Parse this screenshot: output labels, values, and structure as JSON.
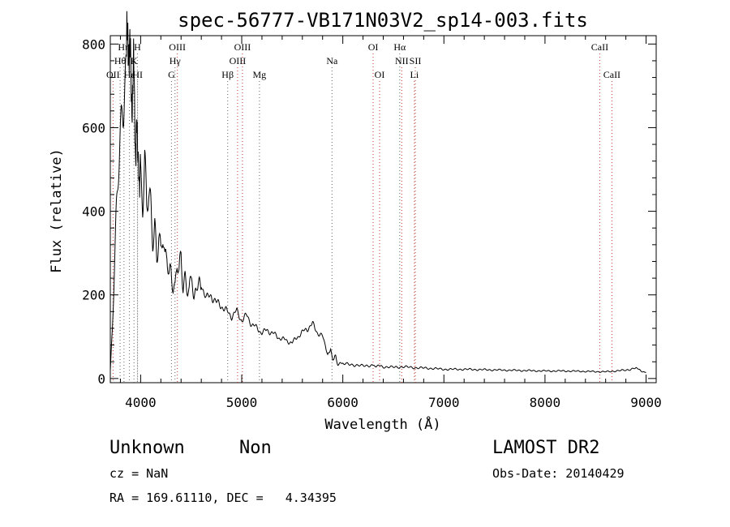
{
  "chart_data": {
    "type": "line",
    "title": "spec-56777-VB171N03V2_sp14-003.fits",
    "xlabel": "Wavelength (Å)",
    "ylabel": "Flux (relative)",
    "xlim": [
      3700,
      9100
    ],
    "ylim": [
      -10,
      820
    ],
    "x_ticks": [
      4000,
      5000,
      6000,
      7000,
      8000,
      9000
    ],
    "y_ticks": [
      0,
      200,
      400,
      600,
      800
    ],
    "grid": false,
    "series": [
      {
        "x": [
          3700,
          3720,
          3740,
          3760,
          3780,
          3800,
          3820,
          3840,
          3860,
          3870,
          3880,
          3890,
          3900,
          3910,
          3920,
          3930,
          3940,
          3950,
          3960,
          3970,
          3980,
          3990,
          4000,
          4020,
          4040,
          4060,
          4080,
          4100,
          4120,
          4140,
          4160,
          4180,
          4200,
          4220,
          4240,
          4260,
          4280,
          4300,
          4320,
          4340,
          4360,
          4380,
          4400,
          4420,
          4440,
          4460,
          4480,
          4500,
          4550,
          4600,
          4650,
          4700,
          4750,
          4800,
          4850,
          4900,
          4950,
          5000,
          5050,
          5100,
          5150,
          5200,
          5250,
          5300,
          5350,
          5400,
          5450,
          5500,
          5550,
          5600,
          5650,
          5700,
          5750,
          5800,
          5850,
          5880,
          5900,
          5930,
          5950,
          6000,
          6100,
          6200,
          6300,
          6350,
          6400,
          6500,
          6600,
          6700,
          6800,
          6900,
          7000,
          7200,
          7400,
          7600,
          7800,
          8000,
          8200,
          8400,
          8600,
          8800,
          8900,
          8950,
          9000
        ],
        "y": [
          20,
          120,
          260,
          380,
          480,
          570,
          660,
          720,
          760,
          800,
          840,
          790,
          730,
          680,
          700,
          720,
          650,
          560,
          600,
          510,
          540,
          470,
          500,
          430,
          520,
          390,
          430,
          400,
          340,
          380,
          300,
          350,
          290,
          330,
          270,
          300,
          260,
          270,
          230,
          210,
          270,
          240,
          290,
          220,
          250,
          230,
          210,
          240,
          200,
          230,
          190,
          200,
          180,
          175,
          160,
          150,
          160,
          140,
          150,
          130,
          120,
          110,
          115,
          110,
          100,
          95,
          90,
          85,
          100,
          110,
          120,
          130,
          110,
          100,
          60,
          70,
          40,
          55,
          35,
          35,
          33,
          30,
          32,
          30,
          28,
          27,
          28,
          26,
          25,
          24,
          22,
          22,
          21,
          20,
          19,
          18,
          18,
          17,
          16,
          20,
          25,
          18,
          15
        ]
      }
    ],
    "line_ids": [
      {
        "label": "Hη",
        "x": 3835,
        "row": 0
      },
      {
        "label": "H",
        "x": 3968,
        "row": 0
      },
      {
        "label": "Hθ",
        "x": 3797,
        "row": 1
      },
      {
        "label": "K",
        "x": 3934,
        "row": 1
      },
      {
        "label": "OII",
        "x": 3727,
        "row": 2
      },
      {
        "label": "Hε",
        "x": 3889,
        "row": 2
      },
      {
        "label": "HI",
        "x": 3970,
        "row": 2
      },
      {
        "label": "OIII",
        "x": 4363,
        "row": 0
      },
      {
        "label": "Hγ",
        "x": 4340,
        "row": 1
      },
      {
        "label": "G",
        "x": 4305,
        "row": 2
      },
      {
        "label": "Hβ",
        "x": 4861,
        "row": 2
      },
      {
        "label": "OIII",
        "x": 5007,
        "row": 0
      },
      {
        "label": "OIII",
        "x": 4959,
        "row": 1
      },
      {
        "label": "Mg",
        "x": 5175,
        "row": 2
      },
      {
        "label": "Na",
        "x": 5893,
        "row": 1
      },
      {
        "label": "OI",
        "x": 6300,
        "row": 0
      },
      {
        "label": "OI",
        "x": 6364,
        "row": 2
      },
      {
        "label": "Hα",
        "x": 6563,
        "row": 0
      },
      {
        "label": "NII",
        "x": 6583,
        "row": 1
      },
      {
        "label": "SII",
        "x": 6717,
        "row": 1
      },
      {
        "label": "Li",
        "x": 6708,
        "row": 2
      },
      {
        "label": "CaII",
        "x": 8542,
        "row": 0
      },
      {
        "label": "CaII",
        "x": 8662,
        "row": 2
      }
    ]
  },
  "info": {
    "class": "Unknown",
    "subclass": "Non",
    "cz": "cz = NaN",
    "coords": "RA = 169.61110, DEC =   4.34395",
    "survey": "LAMOST DR2",
    "obs_date": "Obs-Date: 20140429"
  }
}
